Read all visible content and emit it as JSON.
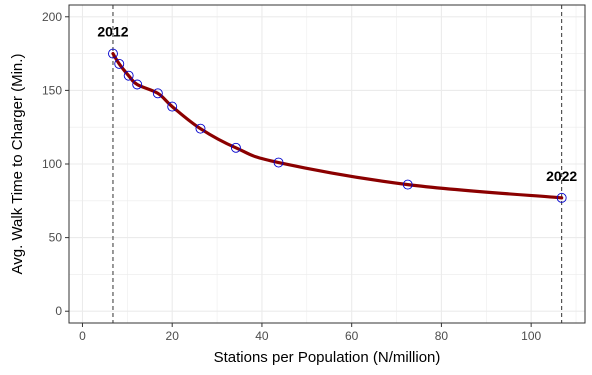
{
  "chart_data": {
    "type": "line",
    "xlabel": "Stations per Population (N/million)",
    "ylabel": "Avg. Walk Time to Charger (Min.)",
    "xlim": [
      -3,
      112
    ],
    "ylim": [
      -8,
      208
    ],
    "x_ticks": [
      0,
      20,
      40,
      60,
      80,
      100
    ],
    "y_ticks": [
      0,
      50,
      100,
      150,
      200
    ],
    "grid": true,
    "series": [
      {
        "points": [
          {
            "x": 6.8,
            "y": 175
          },
          {
            "x": 8.2,
            "y": 168
          },
          {
            "x": 10.3,
            "y": 160
          },
          {
            "x": 12.2,
            "y": 154
          },
          {
            "x": 16.8,
            "y": 148
          },
          {
            "x": 20.0,
            "y": 139
          },
          {
            "x": 26.3,
            "y": 124
          },
          {
            "x": 34.2,
            "y": 111
          },
          {
            "x": 43.7,
            "y": 101
          },
          {
            "x": 72.5,
            "y": 86
          },
          {
            "x": 106.8,
            "y": 77
          }
        ]
      }
    ],
    "annotations": [
      {
        "text": "2012",
        "x": 6.8,
        "y": 175
      },
      {
        "text": "2022",
        "x": 106.8,
        "y": 77
      }
    ],
    "vlines": [
      6.8,
      106.8
    ],
    "colors": {
      "line": "#8b0000",
      "marker": "#0000cd",
      "grid": "#ebebeb",
      "panel_border": "#333333",
      "vline": "#333333"
    }
  }
}
